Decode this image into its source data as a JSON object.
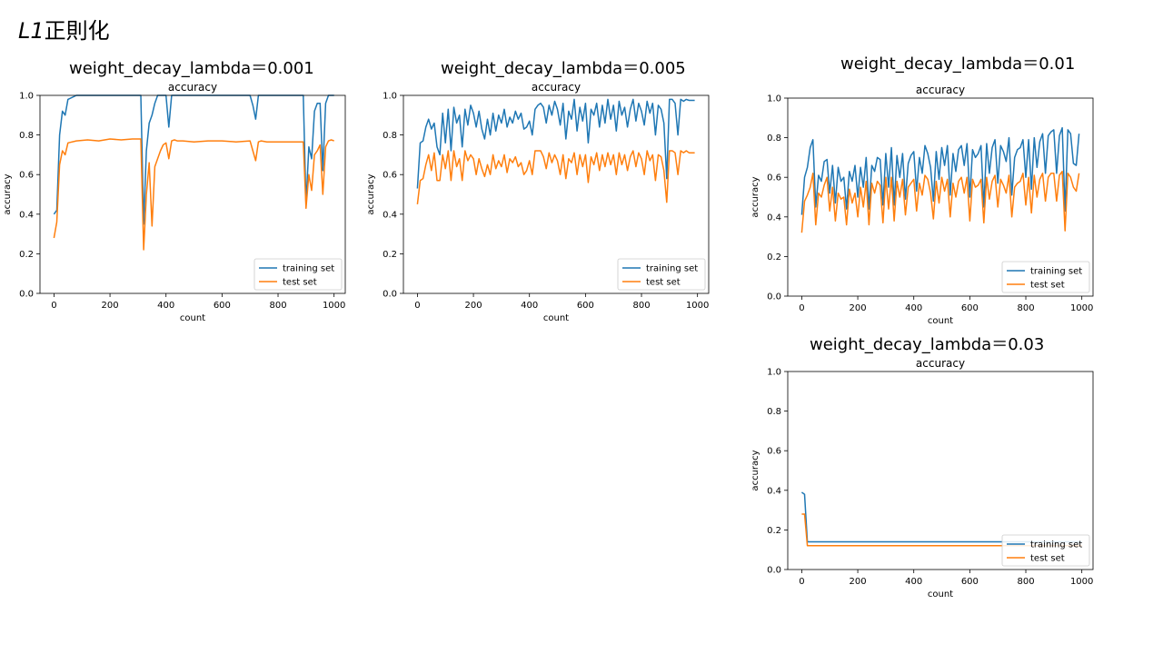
{
  "page": {
    "title_prefix": "L1",
    "title_suffix": "正則化"
  },
  "colors": {
    "training": "#1f77b4",
    "test": "#ff7f0e"
  },
  "panels": [
    {
      "heading": "weight_decay_lambda＝0.001"
    },
    {
      "heading": "weight_decay_lambda＝0.005"
    },
    {
      "heading": "weight_decay_lambda＝0.01"
    },
    {
      "heading": "weight_decay_lambda＝0.03"
    }
  ],
  "chart_data": [
    {
      "type": "line",
      "title": "accuracy",
      "xlabel": "count",
      "ylabel": "accuracy",
      "xlim": [
        -50,
        1040
      ],
      "ylim": [
        0,
        1.0
      ],
      "xticks": [
        0,
        200,
        400,
        600,
        800,
        1000
      ],
      "yticks": [
        0.0,
        0.2,
        0.4,
        0.6,
        0.8,
        1.0
      ],
      "legend_position": "bottom-right",
      "x": [
        0,
        10,
        20,
        30,
        40,
        50,
        80,
        120,
        160,
        200,
        240,
        280,
        300,
        310,
        320,
        330,
        340,
        350,
        360,
        370,
        380,
        390,
        400,
        410,
        420,
        430,
        440,
        460,
        500,
        550,
        600,
        650,
        700,
        710,
        720,
        730,
        740,
        760,
        800,
        850,
        880,
        890,
        900,
        910,
        920,
        930,
        940,
        950,
        960,
        970,
        980,
        990,
        1000
      ],
      "series": [
        {
          "name": "training set",
          "values": [
            0.4,
            0.42,
            0.8,
            0.92,
            0.9,
            0.98,
            1.0,
            1.0,
            1.0,
            1.0,
            1.0,
            1.0,
            1.0,
            1.0,
            0.35,
            0.72,
            0.86,
            0.9,
            0.96,
            1.0,
            1.0,
            1.0,
            1.0,
            0.84,
            1.0,
            1.0,
            1.0,
            1.0,
            1.0,
            1.0,
            1.0,
            1.0,
            1.0,
            0.95,
            0.88,
            1.0,
            1.0,
            1.0,
            1.0,
            1.0,
            1.0,
            1.0,
            0.45,
            0.74,
            0.68,
            0.92,
            0.96,
            0.96,
            0.62,
            0.96,
            1.0,
            1.0,
            1.0
          ]
        },
        {
          "name": "test set",
          "values": [
            0.28,
            0.36,
            0.65,
            0.72,
            0.7,
            0.76,
            0.77,
            0.775,
            0.77,
            0.78,
            0.775,
            0.78,
            0.78,
            0.78,
            0.22,
            0.5,
            0.66,
            0.34,
            0.64,
            0.68,
            0.72,
            0.75,
            0.76,
            0.68,
            0.77,
            0.775,
            0.77,
            0.77,
            0.765,
            0.77,
            0.77,
            0.765,
            0.77,
            0.72,
            0.67,
            0.765,
            0.77,
            0.765,
            0.765,
            0.765,
            0.765,
            0.765,
            0.43,
            0.6,
            0.52,
            0.7,
            0.72,
            0.75,
            0.5,
            0.74,
            0.77,
            0.775,
            0.77
          ]
        }
      ]
    },
    {
      "type": "line",
      "title": "accuracy",
      "xlabel": "count",
      "ylabel": "accuracy",
      "xlim": [
        -50,
        1040
      ],
      "ylim": [
        0,
        1.0
      ],
      "xticks": [
        0,
        200,
        400,
        600,
        800,
        1000
      ],
      "yticks": [
        0.0,
        0.2,
        0.4,
        0.6,
        0.8,
        1.0
      ],
      "legend_position": "bottom-right",
      "x": [
        0,
        10,
        20,
        30,
        40,
        50,
        60,
        70,
        80,
        90,
        100,
        110,
        120,
        130,
        140,
        150,
        160,
        170,
        180,
        190,
        200,
        210,
        220,
        230,
        240,
        250,
        260,
        270,
        280,
        290,
        300,
        310,
        320,
        330,
        340,
        350,
        360,
        370,
        380,
        390,
        400,
        410,
        420,
        430,
        440,
        450,
        460,
        470,
        480,
        490,
        500,
        510,
        520,
        530,
        540,
        550,
        560,
        570,
        580,
        590,
        600,
        610,
        620,
        630,
        640,
        650,
        660,
        670,
        680,
        690,
        700,
        710,
        720,
        730,
        740,
        750,
        760,
        770,
        780,
        790,
        800,
        810,
        820,
        830,
        840,
        850,
        860,
        870,
        880,
        890,
        900,
        910,
        920,
        930,
        940,
        950,
        960,
        970,
        980,
        990
      ],
      "series": [
        {
          "name": "training set",
          "values": [
            0.53,
            0.76,
            0.77,
            0.84,
            0.88,
            0.83,
            0.86,
            0.74,
            0.7,
            0.91,
            0.76,
            0.93,
            0.72,
            0.94,
            0.86,
            0.9,
            0.74,
            0.93,
            0.85,
            0.95,
            0.91,
            0.84,
            0.92,
            0.83,
            0.78,
            0.88,
            0.8,
            0.91,
            0.82,
            0.9,
            0.86,
            0.93,
            0.84,
            0.89,
            0.86,
            0.92,
            0.88,
            0.91,
            0.83,
            0.84,
            0.87,
            0.8,
            0.93,
            0.95,
            0.96,
            0.94,
            0.86,
            0.95,
            0.9,
            0.97,
            0.93,
            0.85,
            0.96,
            0.78,
            0.92,
            0.88,
            0.98,
            0.82,
            0.94,
            0.87,
            0.96,
            0.76,
            0.93,
            0.9,
            0.96,
            0.84,
            0.95,
            0.86,
            0.98,
            0.88,
            0.95,
            0.82,
            0.97,
            0.9,
            0.94,
            0.84,
            0.93,
            0.98,
            0.87,
            0.96,
            0.92,
            0.85,
            0.97,
            0.91,
            0.96,
            0.8,
            0.95,
            0.93,
            0.86,
            0.58,
            0.98,
            0.98,
            0.96,
            0.8,
            0.98,
            0.97,
            0.98,
            0.975,
            0.975,
            0.975
          ]
        },
        {
          "name": "test set",
          "values": [
            0.45,
            0.57,
            0.58,
            0.65,
            0.7,
            0.62,
            0.71,
            0.57,
            0.57,
            0.7,
            0.63,
            0.72,
            0.57,
            0.72,
            0.64,
            0.68,
            0.57,
            0.72,
            0.67,
            0.7,
            0.68,
            0.6,
            0.68,
            0.63,
            0.59,
            0.65,
            0.6,
            0.7,
            0.63,
            0.67,
            0.64,
            0.7,
            0.61,
            0.68,
            0.66,
            0.69,
            0.64,
            0.66,
            0.6,
            0.62,
            0.67,
            0.6,
            0.72,
            0.72,
            0.72,
            0.69,
            0.63,
            0.71,
            0.66,
            0.7,
            0.67,
            0.6,
            0.7,
            0.58,
            0.68,
            0.66,
            0.71,
            0.6,
            0.7,
            0.64,
            0.7,
            0.56,
            0.69,
            0.65,
            0.71,
            0.62,
            0.7,
            0.64,
            0.71,
            0.65,
            0.7,
            0.6,
            0.71,
            0.65,
            0.7,
            0.62,
            0.69,
            0.72,
            0.64,
            0.71,
            0.68,
            0.6,
            0.72,
            0.67,
            0.7,
            0.57,
            0.7,
            0.69,
            0.62,
            0.46,
            0.72,
            0.72,
            0.71,
            0.6,
            0.72,
            0.71,
            0.72,
            0.71,
            0.71,
            0.71
          ]
        }
      ]
    },
    {
      "type": "line",
      "title": "accuracy",
      "xlabel": "count",
      "ylabel": "accuracy",
      "xlim": [
        -50,
        1040
      ],
      "ylim": [
        0,
        1.0
      ],
      "xticks": [
        0,
        200,
        400,
        600,
        800,
        1000
      ],
      "yticks": [
        0.0,
        0.2,
        0.4,
        0.6,
        0.8,
        1.0
      ],
      "legend_position": "bottom-right",
      "x": [
        0,
        10,
        20,
        30,
        40,
        50,
        60,
        70,
        80,
        90,
        100,
        110,
        120,
        130,
        140,
        150,
        160,
        170,
        180,
        190,
        200,
        210,
        220,
        230,
        240,
        250,
        260,
        270,
        280,
        290,
        300,
        310,
        320,
        330,
        340,
        350,
        360,
        370,
        380,
        390,
        400,
        410,
        420,
        430,
        440,
        450,
        460,
        470,
        480,
        490,
        500,
        510,
        520,
        530,
        540,
        550,
        560,
        570,
        580,
        590,
        600,
        610,
        620,
        630,
        640,
        650,
        660,
        670,
        680,
        690,
        700,
        710,
        720,
        730,
        740,
        750,
        760,
        770,
        780,
        790,
        800,
        810,
        820,
        830,
        840,
        850,
        860,
        870,
        880,
        890,
        900,
        910,
        920,
        930,
        940,
        950,
        960,
        970,
        980,
        990
      ],
      "series": [
        {
          "name": "training set",
          "values": [
            0.41,
            0.6,
            0.65,
            0.75,
            0.79,
            0.45,
            0.61,
            0.58,
            0.68,
            0.69,
            0.52,
            0.66,
            0.47,
            0.65,
            0.58,
            0.6,
            0.44,
            0.63,
            0.58,
            0.66,
            0.5,
            0.65,
            0.55,
            0.7,
            0.44,
            0.66,
            0.63,
            0.7,
            0.69,
            0.46,
            0.72,
            0.55,
            0.75,
            0.46,
            0.71,
            0.6,
            0.72,
            0.49,
            0.67,
            0.71,
            0.73,
            0.53,
            0.7,
            0.62,
            0.76,
            0.72,
            0.65,
            0.48,
            0.73,
            0.59,
            0.75,
            0.66,
            0.76,
            0.51,
            0.72,
            0.63,
            0.74,
            0.76,
            0.66,
            0.77,
            0.5,
            0.74,
            0.7,
            0.72,
            0.76,
            0.45,
            0.77,
            0.62,
            0.75,
            0.79,
            0.57,
            0.76,
            0.73,
            0.68,
            0.8,
            0.51,
            0.7,
            0.74,
            0.75,
            0.79,
            0.6,
            0.79,
            0.54,
            0.8,
            0.65,
            0.78,
            0.82,
            0.62,
            0.81,
            0.83,
            0.84,
            0.62,
            0.81,
            0.85,
            0.43,
            0.84,
            0.82,
            0.67,
            0.66,
            0.82
          ]
        },
        {
          "name": "test set",
          "values": [
            0.32,
            0.48,
            0.51,
            0.55,
            0.62,
            0.36,
            0.52,
            0.5,
            0.56,
            0.6,
            0.43,
            0.55,
            0.38,
            0.52,
            0.49,
            0.5,
            0.36,
            0.54,
            0.47,
            0.52,
            0.4,
            0.55,
            0.45,
            0.58,
            0.36,
            0.57,
            0.52,
            0.58,
            0.56,
            0.37,
            0.6,
            0.44,
            0.6,
            0.38,
            0.58,
            0.5,
            0.59,
            0.41,
            0.55,
            0.57,
            0.59,
            0.43,
            0.57,
            0.51,
            0.61,
            0.59,
            0.52,
            0.39,
            0.58,
            0.47,
            0.6,
            0.53,
            0.59,
            0.4,
            0.57,
            0.5,
            0.58,
            0.6,
            0.52,
            0.6,
            0.38,
            0.59,
            0.55,
            0.56,
            0.59,
            0.37,
            0.6,
            0.49,
            0.58,
            0.61,
            0.45,
            0.59,
            0.56,
            0.52,
            0.61,
            0.4,
            0.55,
            0.57,
            0.58,
            0.62,
            0.46,
            0.6,
            0.42,
            0.61,
            0.5,
            0.59,
            0.62,
            0.48,
            0.6,
            0.62,
            0.62,
            0.48,
            0.61,
            0.63,
            0.33,
            0.62,
            0.6,
            0.55,
            0.53,
            0.62
          ]
        }
      ]
    },
    {
      "type": "line",
      "title": "accuracy",
      "xlabel": "count",
      "ylabel": "accuracy",
      "xlim": [
        -50,
        1040
      ],
      "ylim": [
        0,
        1.0
      ],
      "xticks": [
        0,
        200,
        400,
        600,
        800,
        1000
      ],
      "yticks": [
        0.0,
        0.2,
        0.4,
        0.6,
        0.8,
        1.0
      ],
      "legend_position": "bottom-right",
      "x": [
        0,
        10,
        20,
        30,
        100,
        200,
        300,
        400,
        500,
        600,
        700,
        800,
        900,
        1000
      ],
      "series": [
        {
          "name": "training set",
          "values": [
            0.39,
            0.38,
            0.14,
            0.14,
            0.14,
            0.14,
            0.14,
            0.14,
            0.14,
            0.14,
            0.14,
            0.14,
            0.14,
            0.14
          ]
        },
        {
          "name": "test set",
          "values": [
            0.28,
            0.28,
            0.12,
            0.12,
            0.12,
            0.12,
            0.12,
            0.12,
            0.12,
            0.12,
            0.12,
            0.12,
            0.12,
            0.12
          ]
        }
      ]
    }
  ]
}
